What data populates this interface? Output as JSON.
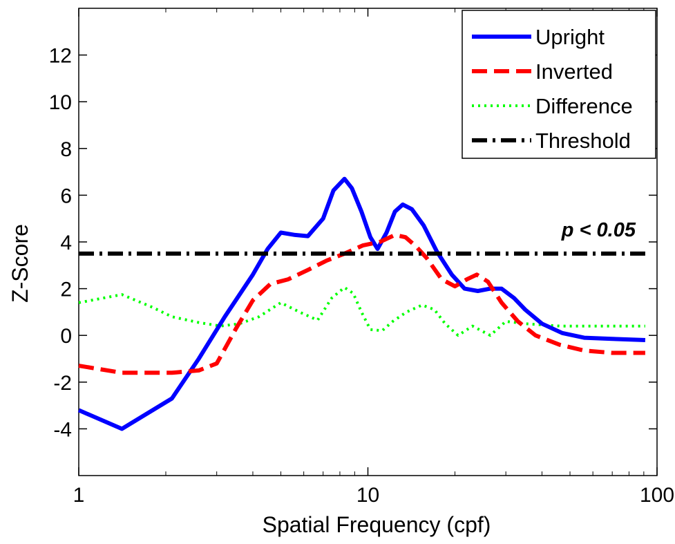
{
  "chart_data": {
    "type": "line",
    "xscale": "log",
    "xlim": [
      1,
      100
    ],
    "ylim": [
      -6,
      14
    ],
    "xticks": [
      "1",
      "10",
      "100"
    ],
    "yticks": [
      "-4",
      "-2",
      "0",
      "2",
      "4",
      "6",
      "8",
      "10",
      "12"
    ],
    "xlabel": "Spatial Frequency (cpf)",
    "ylabel": "Z-Score",
    "grid": false,
    "legend_position": "top-right",
    "annotation": "p < 0.05",
    "series": [
      {
        "name": "Upright",
        "color": "#0000ff",
        "style": "solid",
        "x": [
          1,
          1.41,
          2.1,
          2.6,
          3.2,
          4.0,
          4.5,
          5.0,
          5.6,
          6.2,
          7.0,
          7.6,
          8.3,
          8.8,
          9.5,
          10.2,
          10.8,
          11.6,
          12.4,
          13.2,
          14.2,
          15.6,
          17.3,
          19.5,
          21.6,
          24.0,
          26.5,
          29.0,
          32.0,
          35.0,
          40.0,
          47.0,
          56.0,
          70.0,
          91.0
        ],
        "y": [
          -3.2,
          -4.0,
          -2.7,
          -1.0,
          0.8,
          2.6,
          3.7,
          4.4,
          4.3,
          4.25,
          5.0,
          6.2,
          6.7,
          6.3,
          5.3,
          4.2,
          3.7,
          4.4,
          5.3,
          5.6,
          5.4,
          4.7,
          3.6,
          2.6,
          2.0,
          1.9,
          2.0,
          2.0,
          1.6,
          1.1,
          0.5,
          0.1,
          -0.1,
          -0.15,
          -0.2
        ]
      },
      {
        "name": "Inverted",
        "color": "#ff0000",
        "style": "dashed",
        "x": [
          1,
          1.41,
          2.1,
          2.6,
          3.0,
          3.5,
          4.0,
          4.6,
          5.3,
          6.2,
          7.2,
          8.3,
          9.6,
          11.0,
          12.4,
          13.5,
          14.7,
          16.0,
          18.0,
          20.0,
          22.0,
          23.8,
          26.0,
          29.0,
          33.0,
          38.0,
          46.0,
          56.0,
          70.0,
          91.0
        ],
        "y": [
          -1.3,
          -1.6,
          -1.6,
          -1.5,
          -1.2,
          0.3,
          1.5,
          2.2,
          2.4,
          2.8,
          3.2,
          3.5,
          3.85,
          4.0,
          4.3,
          4.2,
          3.8,
          3.3,
          2.4,
          2.1,
          2.4,
          2.6,
          2.3,
          1.4,
          0.6,
          0.0,
          -0.4,
          -0.65,
          -0.75,
          -0.75
        ]
      },
      {
        "name": "Difference",
        "color": "#00ff00",
        "style": "dotted",
        "x": [
          1,
          1.41,
          1.8,
          2.1,
          2.6,
          3.1,
          3.6,
          4.2,
          5.0,
          5.8,
          6.7,
          7.5,
          8.3,
          8.9,
          9.5,
          10.2,
          11.2,
          12.2,
          13.6,
          15.4,
          17.0,
          18.5,
          20.5,
          23.0,
          26.5,
          30.0,
          35.0,
          46.0,
          60.0,
          91.0
        ],
        "y": [
          1.4,
          1.75,
          1.2,
          0.8,
          0.55,
          0.4,
          0.5,
          0.8,
          1.4,
          1.0,
          0.65,
          1.6,
          2.05,
          1.8,
          1.0,
          0.25,
          0.2,
          0.6,
          1.0,
          1.3,
          1.1,
          0.5,
          0.0,
          0.4,
          0.0,
          0.6,
          0.5,
          0.4,
          0.4,
          0.4
        ]
      },
      {
        "name": "Threshold",
        "color": "#000000",
        "style": "dashdot",
        "x": [
          1,
          91
        ],
        "y": [
          3.5,
          3.5
        ]
      }
    ]
  }
}
